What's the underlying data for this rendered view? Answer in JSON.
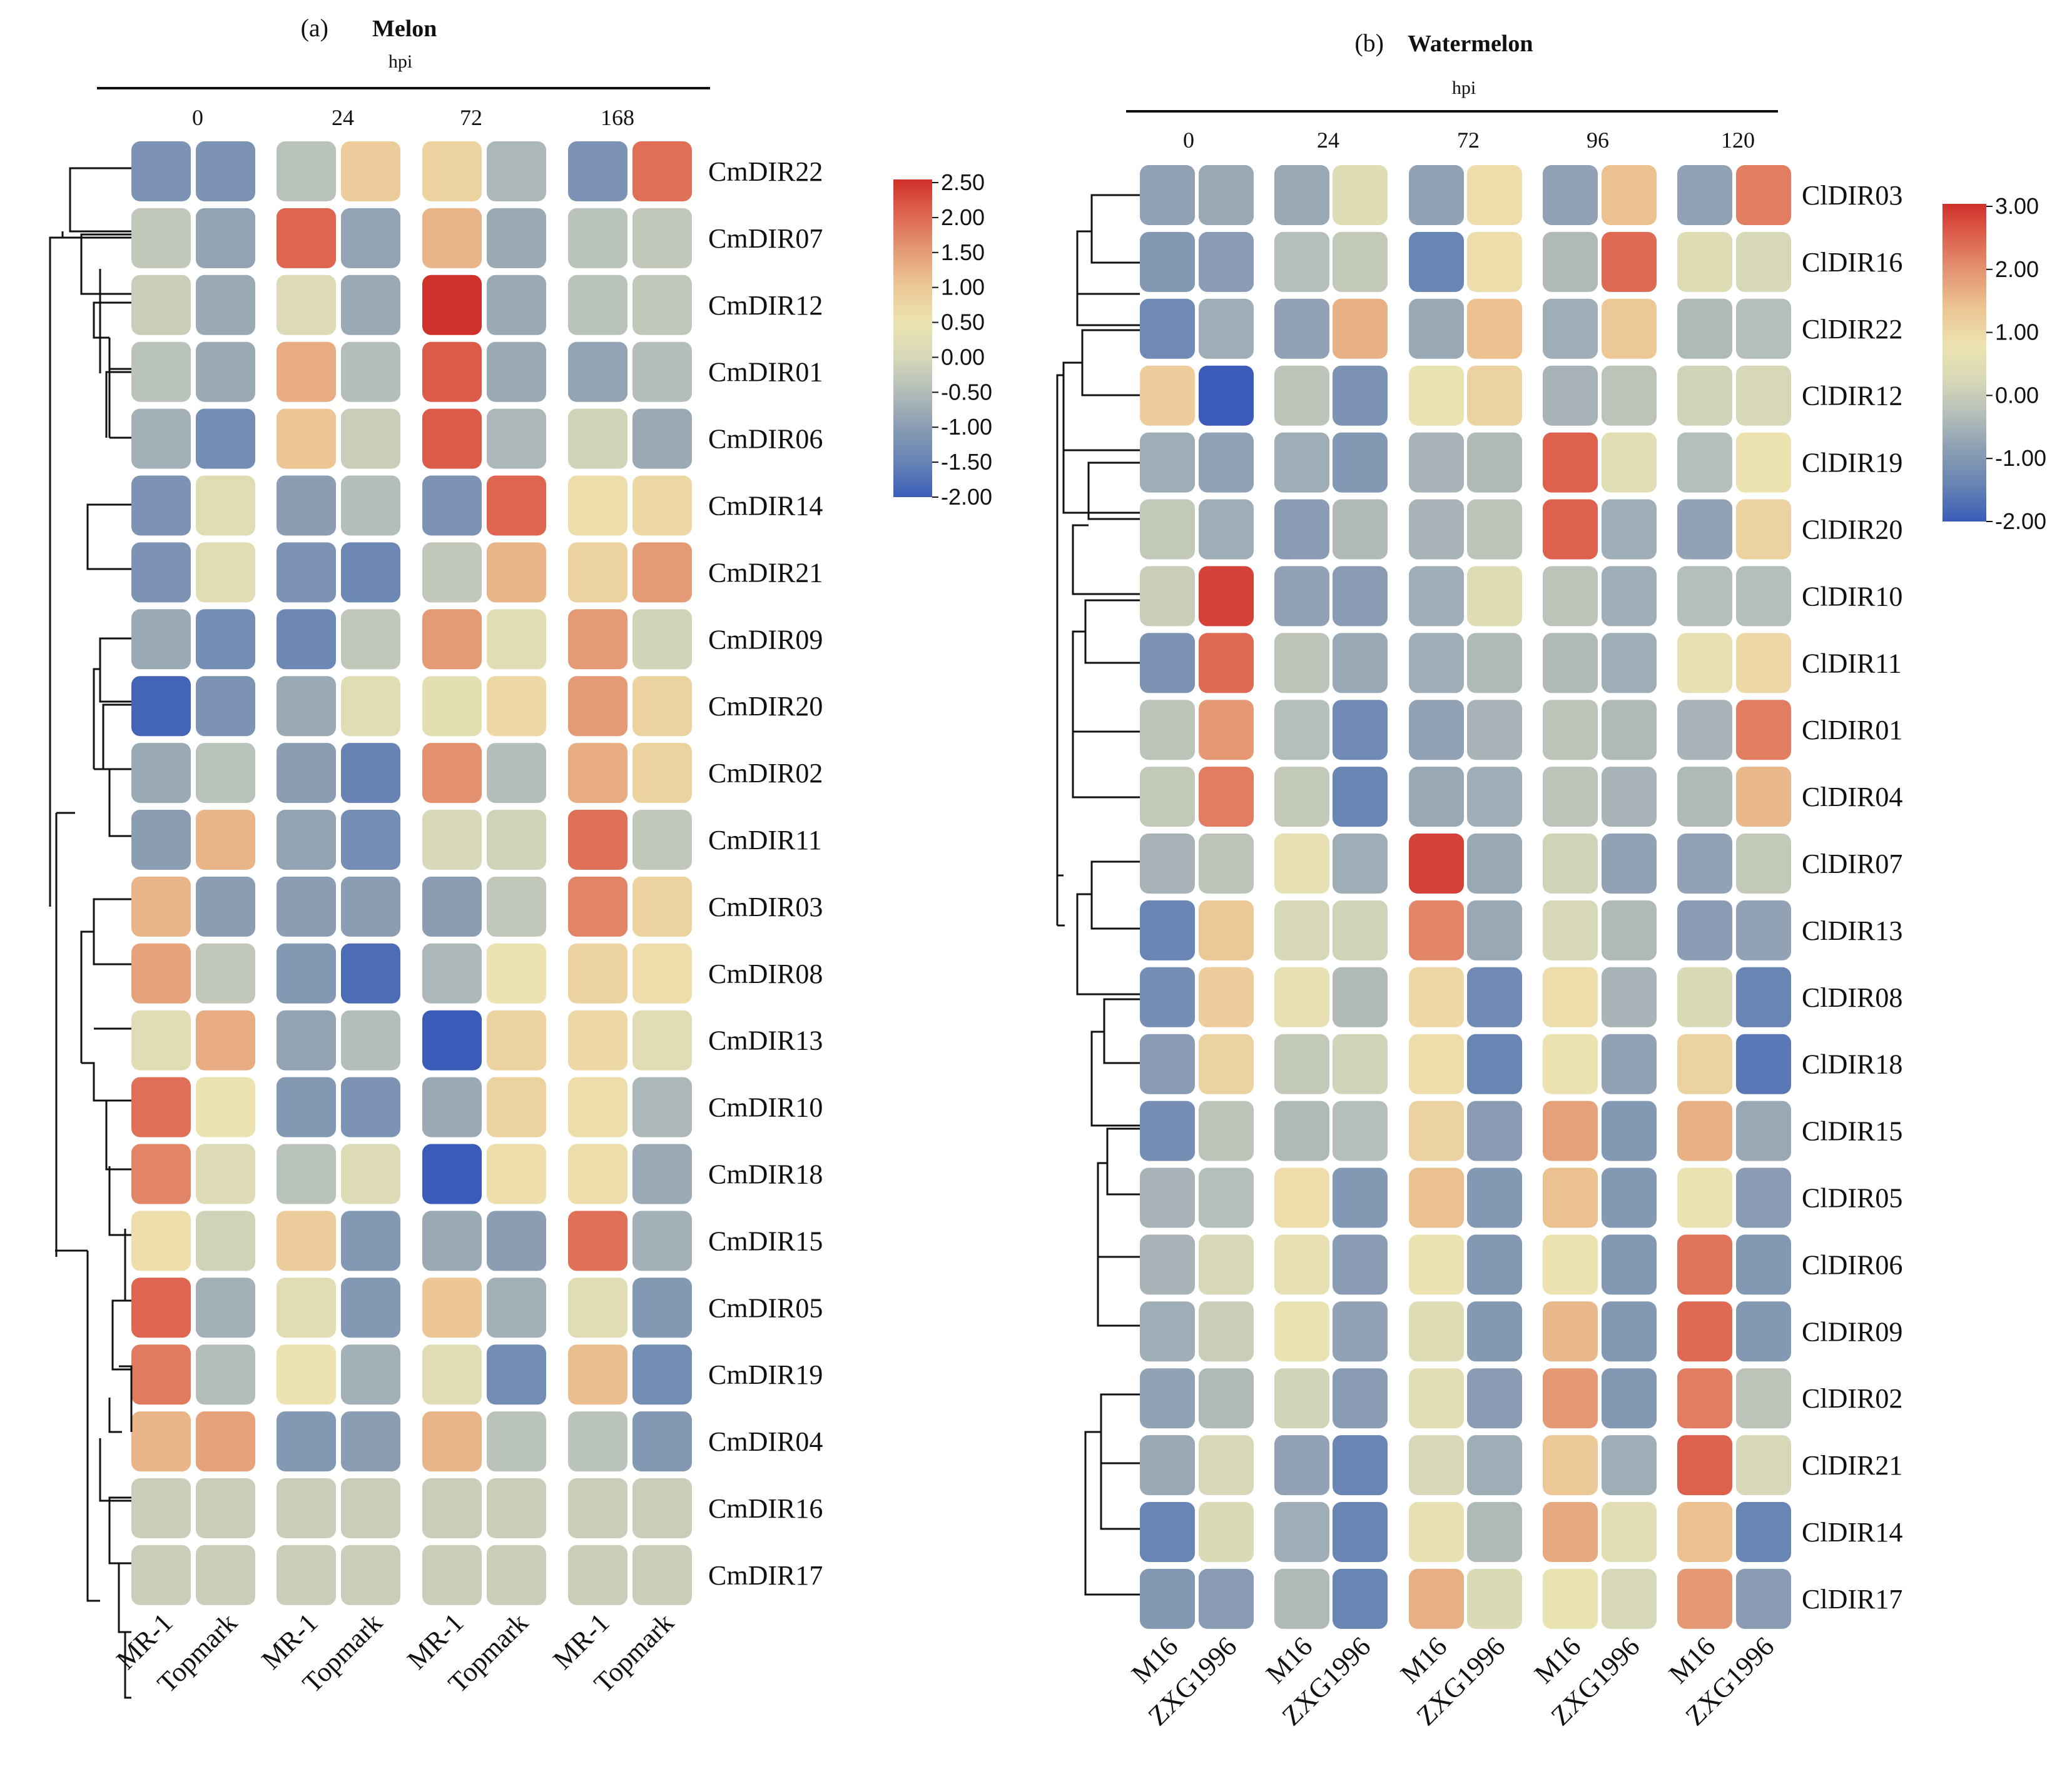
{
  "palette": [
    "#3a5cb8",
    "#6683b4",
    "#8a9db3",
    "#b3bdb9",
    "#d8d9b8",
    "#ece3b0",
    "#ecc694",
    "#e49a75",
    "#de6650",
    "#d0302a"
  ],
  "chart_data": [
    {
      "type": "heatmap",
      "panel": "(a)",
      "title": "Melon",
      "group_label": "hpi",
      "timepoints": [
        "0",
        "24",
        "72",
        "168"
      ],
      "samples": [
        "MR-1",
        "Topmark"
      ],
      "colorbar": {
        "min": -2.0,
        "max": 2.5,
        "ticks": [
          "2.50",
          "2.00",
          "1.50",
          "1.00",
          "0.50",
          "0.00",
          "-0.50",
          "-1.00",
          "-1.50",
          "-2.00"
        ]
      },
      "rows": [
        {
          "gene": "CmDIR22",
          "values": [
            -1.2,
            -1.2,
            -0.4,
            0.9,
            0.8,
            -0.6,
            -1.2,
            1.9
          ]
        },
        {
          "gene": "CmDIR07",
          "values": [
            -0.3,
            -0.9,
            2.0,
            -0.9,
            1.2,
            -0.8,
            -0.4,
            -0.3
          ]
        },
        {
          "gene": "CmDIR12",
          "values": [
            -0.2,
            -0.8,
            0.1,
            -0.8,
            2.5,
            -0.8,
            -0.4,
            -0.3
          ]
        },
        {
          "gene": "CmDIR01",
          "values": [
            -0.4,
            -0.8,
            1.3,
            -0.5,
            2.1,
            -0.8,
            -0.9,
            -0.5
          ]
        },
        {
          "gene": "CmDIR06",
          "values": [
            -0.7,
            -1.3,
            1.0,
            -0.2,
            2.1,
            -0.6,
            -0.1,
            -0.8
          ]
        },
        {
          "gene": "CmDIR14",
          "values": [
            -1.2,
            0.2,
            -1.0,
            -0.5,
            -1.2,
            2.0,
            0.6,
            0.7
          ]
        },
        {
          "gene": "CmDIR21",
          "values": [
            -1.2,
            0.2,
            -1.2,
            -1.4,
            -0.3,
            1.2,
            0.8,
            1.5
          ]
        },
        {
          "gene": "CmDIR09",
          "values": [
            -0.8,
            -1.3,
            -1.4,
            -0.3,
            1.5,
            0.2,
            1.5,
            -0.1
          ]
        },
        {
          "gene": "CmDIR20",
          "values": [
            -1.9,
            -1.2,
            -0.8,
            0.2,
            0.3,
            0.7,
            1.5,
            0.8
          ]
        },
        {
          "gene": "CmDIR02",
          "values": [
            -0.8,
            -0.4,
            -1.0,
            -1.5,
            1.6,
            -0.5,
            1.3,
            0.8
          ]
        },
        {
          "gene": "CmDIR11",
          "values": [
            -1.0,
            1.2,
            -0.9,
            -1.3,
            0.0,
            -0.1,
            1.9,
            -0.3
          ]
        },
        {
          "gene": "CmDIR03",
          "values": [
            1.2,
            -1.0,
            -1.0,
            -1.0,
            -1.0,
            -0.3,
            1.7,
            0.8
          ]
        },
        {
          "gene": "CmDIR08",
          "values": [
            1.4,
            -0.3,
            -1.1,
            -1.8,
            -0.6,
            0.5,
            0.8,
            0.6
          ]
        },
        {
          "gene": "CmDIR13",
          "values": [
            0.2,
            1.3,
            -0.9,
            -0.5,
            -2.0,
            0.8,
            0.7,
            0.2
          ]
        },
        {
          "gene": "CmDIR10",
          "values": [
            1.9,
            0.5,
            -1.1,
            -1.2,
            -0.8,
            0.8,
            0.6,
            -0.6
          ]
        },
        {
          "gene": "CmDIR18",
          "values": [
            1.7,
            0.1,
            -0.4,
            0.1,
            -2.0,
            0.6,
            0.6,
            -0.8
          ]
        },
        {
          "gene": "CmDIR15",
          "values": [
            0.6,
            -0.1,
            0.9,
            -1.1,
            -0.8,
            -1.0,
            1.9,
            -0.7
          ]
        },
        {
          "gene": "CmDIR05",
          "values": [
            2.0,
            -0.7,
            0.2,
            -1.1,
            1.0,
            -0.7,
            0.2,
            -1.1
          ]
        },
        {
          "gene": "CmDIR19",
          "values": [
            1.8,
            -0.5,
            0.5,
            -0.7,
            0.2,
            -1.3,
            1.1,
            -1.3
          ]
        },
        {
          "gene": "CmDIR04",
          "values": [
            1.2,
            1.4,
            -1.1,
            -1.0,
            1.2,
            -0.4,
            -0.4,
            -1.1
          ]
        },
        {
          "gene": "CmDIR16",
          "values": [
            -0.2,
            -0.2,
            -0.2,
            -0.2,
            -0.2,
            -0.2,
            -0.2,
            -0.2
          ]
        },
        {
          "gene": "CmDIR17",
          "values": [
            -0.2,
            -0.2,
            -0.2,
            -0.2,
            -0.2,
            -0.2,
            -0.2,
            -0.2
          ]
        }
      ]
    },
    {
      "type": "heatmap",
      "panel": "(b)",
      "title": "Watermelon",
      "group_label": "hpi",
      "timepoints": [
        "0",
        "24",
        "72",
        "96",
        "120"
      ],
      "samples": [
        "M16",
        "ZXG1996"
      ],
      "colorbar": {
        "min": -2.0,
        "max": 3.0,
        "ticks": [
          "3.00",
          "2.00",
          "1.00",
          "0.00",
          "-1.00",
          "-2.00"
        ]
      },
      "rows": [
        {
          "gene": "ClDIR03",
          "values": [
            -0.8,
            -0.7,
            -0.7,
            0.4,
            -0.8,
            0.9,
            -0.8,
            1.4,
            -0.8,
            2.2
          ]
        },
        {
          "gene": "ClDIR16",
          "values": [
            -1.0,
            -0.9,
            -0.3,
            -0.1,
            -1.4,
            0.9,
            -0.4,
            2.4,
            0.4,
            0.2
          ]
        },
        {
          "gene": "ClDIR22",
          "values": [
            -1.3,
            -0.6,
            -0.8,
            1.6,
            -0.7,
            1.4,
            -0.6,
            1.3,
            -0.4,
            -0.3
          ]
        },
        {
          "gene": "ClDIR12",
          "values": [
            1.2,
            -2.0,
            -0.2,
            -1.1,
            0.7,
            1.1,
            -0.5,
            -0.2,
            0.1,
            0.2
          ]
        },
        {
          "gene": "ClDIR19",
          "values": [
            -0.6,
            -0.8,
            -0.6,
            -1.0,
            -0.5,
            -0.4,
            2.5,
            0.5,
            -0.3,
            0.8
          ]
        },
        {
          "gene": "ClDIR20",
          "values": [
            -0.1,
            -0.6,
            -0.9,
            -0.4,
            -0.5,
            -0.2,
            2.5,
            -0.6,
            -0.8,
            1.1
          ]
        },
        {
          "gene": "ClDIR10",
          "values": [
            0.0,
            2.8,
            -0.8,
            -0.9,
            -0.6,
            0.4,
            -0.2,
            -0.6,
            -0.3,
            -0.3
          ]
        },
        {
          "gene": "ClDIR11",
          "values": [
            -1.1,
            2.4,
            -0.2,
            -0.7,
            -0.6,
            -0.4,
            -0.4,
            -0.6,
            0.6,
            1.0
          ]
        },
        {
          "gene": "ClDIR01",
          "values": [
            -0.2,
            1.9,
            -0.3,
            -1.3,
            -0.8,
            -0.5,
            -0.2,
            -0.4,
            -0.5,
            2.2
          ]
        },
        {
          "gene": "ClDIR04",
          "values": [
            -0.1,
            2.2,
            -0.1,
            -1.4,
            -0.7,
            -0.6,
            -0.2,
            -0.5,
            -0.4,
            1.5
          ]
        },
        {
          "gene": "ClDIR07",
          "values": [
            -0.5,
            -0.2,
            0.6,
            -0.6,
            2.8,
            -0.7,
            0.1,
            -0.8,
            -0.8,
            -0.1
          ]
        },
        {
          "gene": "ClDIR13",
          "values": [
            -1.4,
            1.3,
            0.2,
            0.1,
            2.1,
            -0.7,
            0.2,
            -0.4,
            -0.9,
            -0.8
          ]
        },
        {
          "gene": "ClDIR08",
          "values": [
            -1.2,
            1.2,
            0.6,
            -0.4,
            1.0,
            -1.3,
            0.9,
            -0.5,
            0.3,
            -1.4
          ]
        },
        {
          "gene": "ClDIR18",
          "values": [
            -0.9,
            1.1,
            -0.1,
            0.1,
            0.9,
            -1.4,
            0.8,
            -0.8,
            1.1,
            -1.6
          ]
        },
        {
          "gene": "ClDIR15",
          "values": [
            -1.2,
            -0.2,
            -0.4,
            -0.3,
            1.1,
            -0.9,
            1.8,
            -1.0,
            1.6,
            -0.7
          ]
        },
        {
          "gene": "ClDIR05",
          "values": [
            -0.5,
            -0.3,
            0.9,
            -1.0,
            1.4,
            -1.0,
            1.4,
            -1.0,
            0.7,
            -0.9
          ]
        },
        {
          "gene": "ClDIR06",
          "values": [
            -0.5,
            0.2,
            0.6,
            -0.9,
            0.8,
            -1.0,
            0.8,
            -1.0,
            2.3,
            -1.0
          ]
        },
        {
          "gene": "ClDIR09",
          "values": [
            -0.6,
            0.0,
            0.7,
            -0.8,
            0.4,
            -1.0,
            1.5,
            -1.0,
            2.4,
            -1.0
          ]
        },
        {
          "gene": "ClDIR02",
          "values": [
            -0.8,
            -0.4,
            0.1,
            -0.9,
            0.5,
            -0.9,
            1.9,
            -1.0,
            2.2,
            -0.2
          ]
        },
        {
          "gene": "ClDIR21",
          "values": [
            -0.7,
            0.2,
            -0.8,
            -1.4,
            0.2,
            -0.6,
            1.3,
            -0.6,
            2.5,
            0.2
          ]
        },
        {
          "gene": "ClDIR14",
          "values": [
            -1.4,
            0.3,
            -0.6,
            -1.4,
            0.6,
            -0.4,
            1.7,
            0.5,
            1.4,
            -1.4
          ]
        },
        {
          "gene": "ClDIR17",
          "values": [
            -1.0,
            -0.9,
            -0.4,
            -1.4,
            1.6,
            0.3,
            0.7,
            0.2,
            1.9,
            -0.9
          ]
        }
      ]
    }
  ]
}
